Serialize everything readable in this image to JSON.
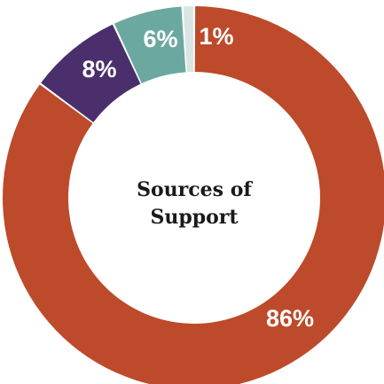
{
  "chart_data": {
    "type": "pie",
    "title_lines": [
      "Sources of",
      "Support"
    ],
    "slices": [
      {
        "label": "86%",
        "value": 86,
        "color": "#BD4A2A"
      },
      {
        "label": "8%",
        "value": 8,
        "color": "#4A2F6C"
      },
      {
        "label": "6%",
        "value": 6,
        "color": "#6BA8A0"
      },
      {
        "label": "1%",
        "value": 1,
        "color": "#D9E5E2"
      }
    ]
  }
}
